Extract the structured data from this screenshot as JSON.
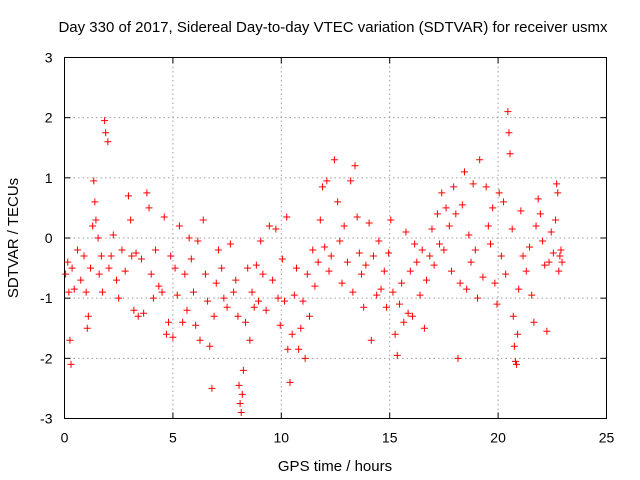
{
  "chart_data": {
    "type": "scatter",
    "title": "Day 330 of 2017, Sidereal Day-to-day VTEC variation (SDTVAR) for receiver usmx",
    "xlabel": "GPS time / hours",
    "ylabel": "SDTVAR / TECUs",
    "xlim": [
      0,
      25
    ],
    "ylim": [
      -3,
      3
    ],
    "xticks": [
      0,
      5,
      10,
      15,
      20,
      25
    ],
    "yticks": [
      -3,
      -2,
      -1,
      0,
      1,
      2,
      3
    ],
    "xtick_labels": [
      "0",
      "5",
      "10",
      "15",
      "20",
      "25"
    ],
    "ytick_labels": [
      "-3",
      "-2",
      "-1",
      "0",
      "1",
      "2",
      "3"
    ],
    "grid": true,
    "marker": "+",
    "series": [
      {
        "name": "SDTVAR",
        "color": "#ff0000",
        "points": [
          [
            0.05,
            -0.6
          ],
          [
            0.15,
            -0.4
          ],
          [
            0.2,
            -0.9
          ],
          [
            0.25,
            -1.7
          ],
          [
            0.3,
            -2.1
          ],
          [
            0.35,
            -0.5
          ],
          [
            0.45,
            -0.85
          ],
          [
            0.6,
            -0.2
          ],
          [
            0.75,
            -0.7
          ],
          [
            0.9,
            -0.3
          ],
          [
            1.0,
            -0.9
          ],
          [
            1.05,
            -1.5
          ],
          [
            1.1,
            -1.3
          ],
          [
            1.2,
            -0.5
          ],
          [
            1.3,
            0.2
          ],
          [
            1.35,
            0.95
          ],
          [
            1.4,
            0.6
          ],
          [
            1.45,
            0.3
          ],
          [
            1.55,
            0.0
          ],
          [
            1.6,
            -0.6
          ],
          [
            1.7,
            -0.3
          ],
          [
            1.75,
            -0.9
          ],
          [
            1.85,
            1.95
          ],
          [
            1.9,
            1.75
          ],
          [
            2.0,
            1.6
          ],
          [
            2.05,
            -0.5
          ],
          [
            2.15,
            -0.3
          ],
          [
            2.25,
            0.05
          ],
          [
            2.4,
            -0.7
          ],
          [
            2.5,
            -1.0
          ],
          [
            2.65,
            -0.2
          ],
          [
            2.8,
            -0.55
          ],
          [
            2.95,
            0.7
          ],
          [
            3.05,
            0.3
          ],
          [
            3.1,
            -0.3
          ],
          [
            3.2,
            -1.2
          ],
          [
            3.3,
            -0.25
          ],
          [
            3.4,
            -1.3
          ],
          [
            3.55,
            -0.35
          ],
          [
            3.65,
            -1.25
          ],
          [
            3.8,
            0.75
          ],
          [
            3.9,
            0.5
          ],
          [
            4.0,
            -0.6
          ],
          [
            4.1,
            -1.0
          ],
          [
            4.2,
            -0.2
          ],
          [
            4.35,
            -0.8
          ],
          [
            4.5,
            -0.9
          ],
          [
            4.6,
            0.35
          ],
          [
            4.7,
            -1.6
          ],
          [
            4.8,
            -1.4
          ],
          [
            4.9,
            -0.3
          ],
          [
            5.0,
            -1.65
          ],
          [
            5.1,
            -0.5
          ],
          [
            5.2,
            -0.95
          ],
          [
            5.3,
            0.2
          ],
          [
            5.45,
            -1.4
          ],
          [
            5.55,
            -0.6
          ],
          [
            5.65,
            -1.2
          ],
          [
            5.75,
            0.0
          ],
          [
            5.85,
            -0.35
          ],
          [
            5.95,
            -0.9
          ],
          [
            6.05,
            -1.45
          ],
          [
            6.15,
            -0.05
          ],
          [
            6.25,
            -1.7
          ],
          [
            6.4,
            0.3
          ],
          [
            6.5,
            -0.6
          ],
          [
            6.6,
            -1.05
          ],
          [
            6.7,
            -1.8
          ],
          [
            6.8,
            -2.5
          ],
          [
            6.9,
            -1.3
          ],
          [
            7.0,
            -0.75
          ],
          [
            7.1,
            -0.2
          ],
          [
            7.25,
            -0.5
          ],
          [
            7.35,
            -1.0
          ],
          [
            7.5,
            -1.15
          ],
          [
            7.65,
            -0.1
          ],
          [
            7.8,
            -0.9
          ],
          [
            7.9,
            -0.7
          ],
          [
            8.0,
            -1.3
          ],
          [
            8.05,
            -2.45
          ],
          [
            8.1,
            -2.75
          ],
          [
            8.15,
            -2.9
          ],
          [
            8.2,
            -2.6
          ],
          [
            8.25,
            -2.2
          ],
          [
            8.35,
            -1.4
          ],
          [
            8.45,
            -0.5
          ],
          [
            8.55,
            -1.7
          ],
          [
            8.65,
            -0.9
          ],
          [
            8.75,
            -1.15
          ],
          [
            8.85,
            -0.45
          ],
          [
            8.95,
            -1.05
          ],
          [
            9.05,
            -0.05
          ],
          [
            9.15,
            -0.6
          ],
          [
            9.3,
            -1.2
          ],
          [
            9.45,
            0.2
          ],
          [
            9.6,
            -0.7
          ],
          [
            9.75,
            0.15
          ],
          [
            9.85,
            -1.0
          ],
          [
            9.95,
            -1.45
          ],
          [
            10.05,
            -0.35
          ],
          [
            10.15,
            -1.05
          ],
          [
            10.25,
            0.35
          ],
          [
            10.3,
            -1.85
          ],
          [
            10.4,
            -2.4
          ],
          [
            10.5,
            -1.6
          ],
          [
            10.6,
            -0.95
          ],
          [
            10.7,
            -0.5
          ],
          [
            10.8,
            -1.85
          ],
          [
            10.9,
            -1.5
          ],
          [
            11.0,
            -1.05
          ],
          [
            11.1,
            -2.0
          ],
          [
            11.2,
            -0.6
          ],
          [
            11.3,
            -1.3
          ],
          [
            11.45,
            -0.2
          ],
          [
            11.55,
            -0.8
          ],
          [
            11.7,
            -0.4
          ],
          [
            11.8,
            0.3
          ],
          [
            11.9,
            0.85
          ],
          [
            12.0,
            -0.15
          ],
          [
            12.1,
            0.95
          ],
          [
            12.2,
            -0.55
          ],
          [
            12.3,
            -0.3
          ],
          [
            12.45,
            1.3
          ],
          [
            12.6,
            0.6
          ],
          [
            12.7,
            -0.05
          ],
          [
            12.8,
            -0.75
          ],
          [
            12.9,
            0.2
          ],
          [
            13.05,
            -0.4
          ],
          [
            13.2,
            0.95
          ],
          [
            13.3,
            -0.9
          ],
          [
            13.4,
            1.2
          ],
          [
            13.5,
            0.35
          ],
          [
            13.6,
            -0.25
          ],
          [
            13.7,
            -0.6
          ],
          [
            13.8,
            -1.15
          ],
          [
            13.9,
            -0.45
          ],
          [
            14.05,
            0.25
          ],
          [
            14.15,
            -1.7
          ],
          [
            14.25,
            -0.3
          ],
          [
            14.4,
            -0.95
          ],
          [
            14.5,
            -0.05
          ],
          [
            14.6,
            -0.85
          ],
          [
            14.75,
            -0.55
          ],
          [
            14.85,
            -1.15
          ],
          [
            14.95,
            -0.25
          ],
          [
            15.05,
            0.3
          ],
          [
            15.15,
            -0.9
          ],
          [
            15.25,
            -1.6
          ],
          [
            15.35,
            -1.95
          ],
          [
            15.45,
            -1.1
          ],
          [
            15.55,
            -0.75
          ],
          [
            15.65,
            -1.4
          ],
          [
            15.75,
            0.1
          ],
          [
            15.85,
            -1.25
          ],
          [
            15.95,
            -0.55
          ],
          [
            16.05,
            -1.3
          ],
          [
            16.15,
            -0.1
          ],
          [
            16.25,
            -0.4
          ],
          [
            16.4,
            -0.95
          ],
          [
            16.5,
            -0.2
          ],
          [
            16.6,
            -1.5
          ],
          [
            16.7,
            -0.7
          ],
          [
            16.85,
            -0.3
          ],
          [
            16.95,
            0.15
          ],
          [
            17.05,
            -0.45
          ],
          [
            17.2,
            0.4
          ],
          [
            17.3,
            -0.1
          ],
          [
            17.4,
            0.75
          ],
          [
            17.5,
            -0.2
          ],
          [
            17.6,
            0.5
          ],
          [
            17.75,
            0.2
          ],
          [
            17.85,
            -0.55
          ],
          [
            17.95,
            0.85
          ],
          [
            18.05,
            0.4
          ],
          [
            18.15,
            -2.0
          ],
          [
            18.25,
            -0.75
          ],
          [
            18.35,
            0.55
          ],
          [
            18.45,
            1.1
          ],
          [
            18.55,
            -0.85
          ],
          [
            18.65,
            0.05
          ],
          [
            18.75,
            -0.4
          ],
          [
            18.85,
            0.9
          ],
          [
            18.95,
            -0.2
          ],
          [
            19.05,
            -1.0
          ],
          [
            19.15,
            1.3
          ],
          [
            19.3,
            -0.65
          ],
          [
            19.45,
            0.85
          ],
          [
            19.55,
            0.2
          ],
          [
            19.65,
            -0.1
          ],
          [
            19.75,
            0.5
          ],
          [
            19.85,
            -0.75
          ],
          [
            19.95,
            -1.1
          ],
          [
            20.05,
            0.75
          ],
          [
            20.15,
            -0.3
          ],
          [
            20.25,
            0.6
          ],
          [
            20.35,
            -0.6
          ],
          [
            20.45,
            2.1
          ],
          [
            20.5,
            1.75
          ],
          [
            20.55,
            1.4
          ],
          [
            20.65,
            0.15
          ],
          [
            20.7,
            -1.3
          ],
          [
            20.75,
            -1.8
          ],
          [
            20.8,
            -2.05
          ],
          [
            20.85,
            -2.1
          ],
          [
            20.9,
            -1.6
          ],
          [
            20.95,
            -0.85
          ],
          [
            21.05,
            0.45
          ],
          [
            21.15,
            -0.3
          ],
          [
            21.3,
            -0.55
          ],
          [
            21.45,
            -0.15
          ],
          [
            21.55,
            -0.95
          ],
          [
            21.65,
            -1.4
          ],
          [
            21.75,
            0.2
          ],
          [
            21.85,
            0.65
          ],
          [
            21.95,
            0.4
          ],
          [
            22.05,
            -0.05
          ],
          [
            22.15,
            -0.45
          ],
          [
            22.25,
            -1.55
          ],
          [
            22.35,
            -0.4
          ],
          [
            22.45,
            0.1
          ],
          [
            22.55,
            -0.25
          ],
          [
            22.65,
            0.3
          ],
          [
            22.7,
            0.9
          ],
          [
            22.75,
            0.75
          ],
          [
            22.8,
            -0.55
          ],
          [
            22.85,
            -0.3
          ],
          [
            22.9,
            -0.2
          ],
          [
            22.95,
            -0.4
          ]
        ]
      }
    ]
  }
}
